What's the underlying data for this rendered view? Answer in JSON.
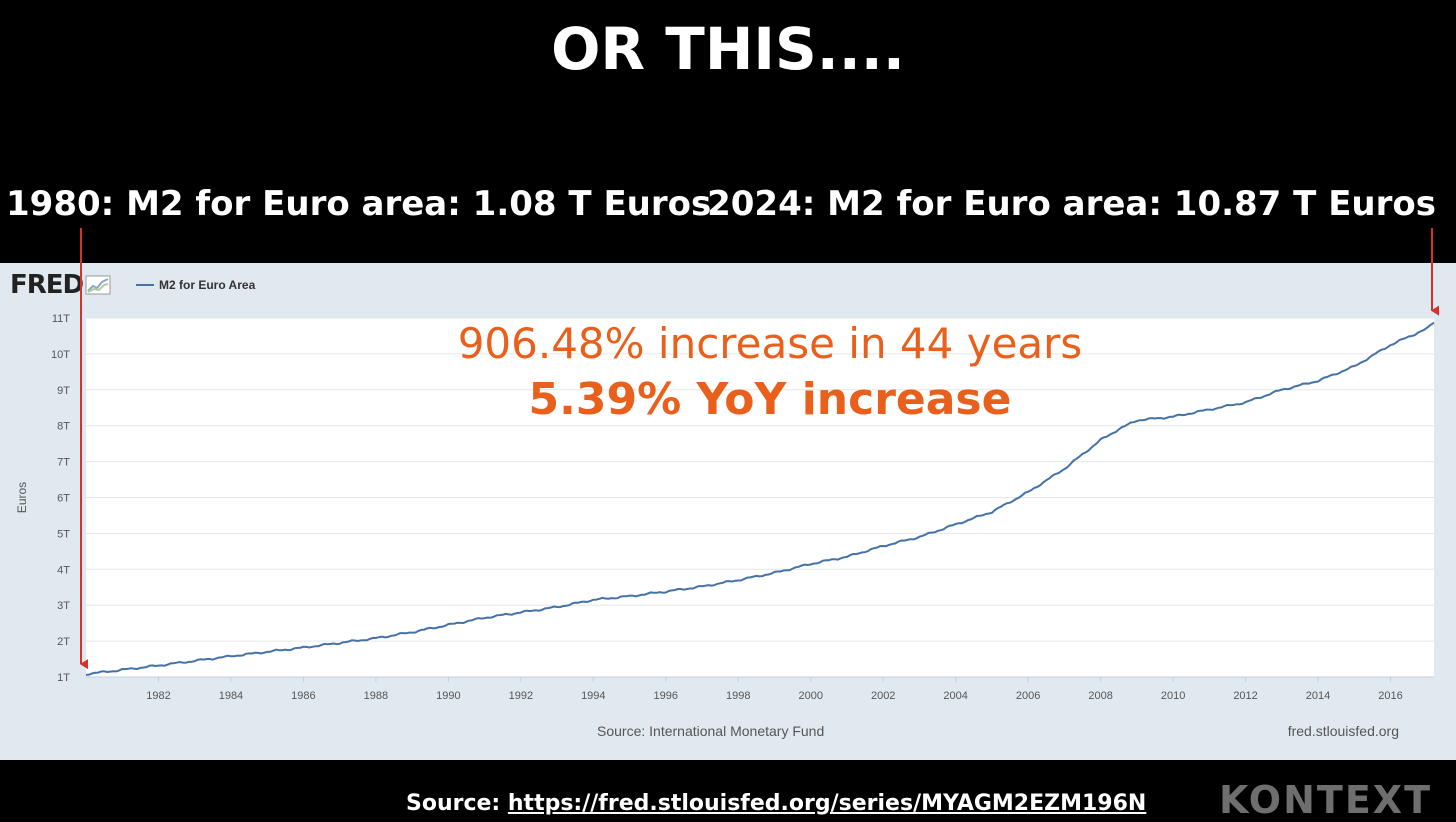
{
  "headline": "OR THIS....",
  "callouts": {
    "left": "1980: M2 for Euro area: 1.08 T Euros",
    "right": "2024: M2 for Euro area: 10.87 T Euros"
  },
  "fred": {
    "logo_text": "FRED",
    "legend_label": "M2 for Euro Area",
    "source": "Source: International Monetary Fund",
    "site": "fred.stlouisfed.org"
  },
  "annotations": {
    "increase": "906.48% increase in 44 years",
    "yoy": "5.39% YoY increase"
  },
  "footer": {
    "source_label": "Source: ",
    "source_url": "https://fred.stlouisfed.org/series/MYAGM2EZM196N",
    "brand": "KONTEXT"
  },
  "colors": {
    "line": "#4572a7",
    "annotation": "#e8601c",
    "arrow": "#d9302c",
    "panel": "#e1e9f0"
  },
  "chart_data": {
    "type": "line",
    "ylabel": "Euros",
    "ylim": [
      1,
      11
    ],
    "xlim": [
      1980,
      2017.2
    ],
    "y_ticks": [
      {
        "value": 1,
        "label": "1T"
      },
      {
        "value": 2,
        "label": "2T"
      },
      {
        "value": 3,
        "label": "3T"
      },
      {
        "value": 4,
        "label": "4T"
      },
      {
        "value": 5,
        "label": "5T"
      },
      {
        "value": 6,
        "label": "6T"
      },
      {
        "value": 7,
        "label": "7T"
      },
      {
        "value": 8,
        "label": "8T"
      },
      {
        "value": 9,
        "label": "9T"
      },
      {
        "value": 10,
        "label": "10T"
      },
      {
        "value": 11,
        "label": "11T"
      }
    ],
    "x_ticks": [
      "1982",
      "1984",
      "1986",
      "1988",
      "1990",
      "1992",
      "1994",
      "1996",
      "1998",
      "2000",
      "2002",
      "2004",
      "2006",
      "2008",
      "2010",
      "2012",
      "2014",
      "2016"
    ],
    "grid": true,
    "legend_position": "top-left",
    "series": [
      {
        "name": "M2 for Euro Area",
        "x": [
          1980,
          1981,
          1982,
          1983,
          1984,
          1985,
          1986,
          1987,
          1988,
          1989,
          1990,
          1991,
          1992,
          1993,
          1994,
          1995,
          1996,
          1997,
          1998,
          1999,
          2000,
          2001,
          2002,
          2003,
          2004,
          2005,
          2006,
          2007,
          2008,
          2008.5,
          2009,
          2010,
          2011,
          2012,
          2013,
          2014,
          2015,
          2016,
          2017,
          2017.2
        ],
        "y": [
          1.08,
          1.2,
          1.32,
          1.45,
          1.58,
          1.7,
          1.82,
          1.95,
          2.08,
          2.25,
          2.45,
          2.65,
          2.8,
          2.95,
          3.15,
          3.25,
          3.38,
          3.52,
          3.7,
          3.9,
          4.15,
          4.35,
          4.65,
          4.9,
          5.25,
          5.6,
          6.15,
          6.8,
          7.6,
          7.9,
          8.15,
          8.25,
          8.45,
          8.65,
          9.0,
          9.25,
          9.65,
          10.25,
          10.7,
          10.87
        ]
      }
    ],
    "annotations": [
      {
        "text": "1980: M2 for Euro area: 1.08 T Euros",
        "x": 1980,
        "y": 1.08
      },
      {
        "text": "2024: M2 for Euro area: 10.87 T Euros",
        "x": 2017.2,
        "y": 10.87
      }
    ]
  }
}
